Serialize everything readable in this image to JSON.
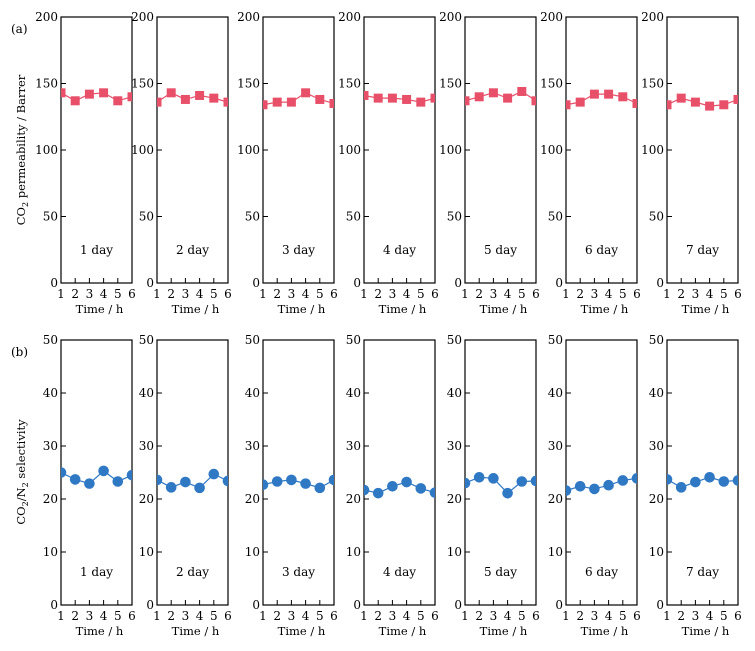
{
  "chart_data": [
    {
      "type": "scatter",
      "panel_label": "(a)",
      "ylabel_parts": [
        "CO",
        "2",
        " permeability / Barrer"
      ],
      "xlabel": "Time / h",
      "ylim": [
        0,
        200
      ],
      "yticks": [
        0,
        50,
        100,
        150,
        200
      ],
      "xlim": [
        1,
        6
      ],
      "xticks": [
        1,
        2,
        3,
        4,
        5,
        6
      ],
      "marker": "square",
      "color": "#e8506a",
      "x": [
        1,
        2,
        3,
        4,
        5,
        6
      ],
      "subplots": [
        {
          "label": "1 day",
          "values": [
            143,
            137,
            142,
            143,
            137,
            140
          ]
        },
        {
          "label": "2 day",
          "values": [
            136,
            143,
            138,
            141,
            139,
            136
          ]
        },
        {
          "label": "3 day",
          "values": [
            134,
            136,
            136,
            143,
            138,
            135
          ]
        },
        {
          "label": "4 day",
          "values": [
            141,
            139,
            139,
            138,
            136,
            139
          ]
        },
        {
          "label": "5 day",
          "values": [
            137,
            140,
            143,
            139,
            144,
            137
          ]
        },
        {
          "label": "6 day",
          "values": [
            134,
            136,
            142,
            142,
            140,
            135
          ]
        },
        {
          "label": "7 day",
          "values": [
            134,
            139,
            136,
            133,
            134,
            138
          ]
        }
      ]
    },
    {
      "type": "line",
      "panel_label": "(b)",
      "ylabel_parts": [
        "CO",
        "2",
        "/N",
        "2",
        " selectivity"
      ],
      "xlabel": "Time / h",
      "ylim": [
        0,
        50
      ],
      "yticks": [
        0,
        10,
        20,
        30,
        40,
        50
      ],
      "xlim": [
        1,
        6
      ],
      "xticks": [
        1,
        2,
        3,
        4,
        5,
        6
      ],
      "marker": "circle",
      "color": "#2f78c4",
      "x": [
        1,
        2,
        3,
        4,
        5,
        6
      ],
      "subplots": [
        {
          "label": "1 day",
          "values": [
            25.0,
            23.7,
            22.9,
            25.3,
            23.3,
            24.5
          ]
        },
        {
          "label": "2 day",
          "values": [
            23.6,
            22.2,
            23.2,
            22.1,
            24.7,
            23.4
          ]
        },
        {
          "label": "3 day",
          "values": [
            22.7,
            23.3,
            23.6,
            22.9,
            22.1,
            23.6
          ]
        },
        {
          "label": "4 day",
          "values": [
            21.7,
            21.1,
            22.4,
            23.2,
            22.0,
            21.2
          ]
        },
        {
          "label": "5 day",
          "values": [
            23.0,
            24.1,
            23.9,
            21.1,
            23.3,
            23.4
          ]
        },
        {
          "label": "6 day",
          "values": [
            21.6,
            22.4,
            21.9,
            22.6,
            23.5,
            23.9
          ]
        },
        {
          "label": "7 day",
          "values": [
            23.7,
            22.2,
            23.2,
            24.1,
            23.3,
            23.5
          ]
        }
      ]
    }
  ]
}
